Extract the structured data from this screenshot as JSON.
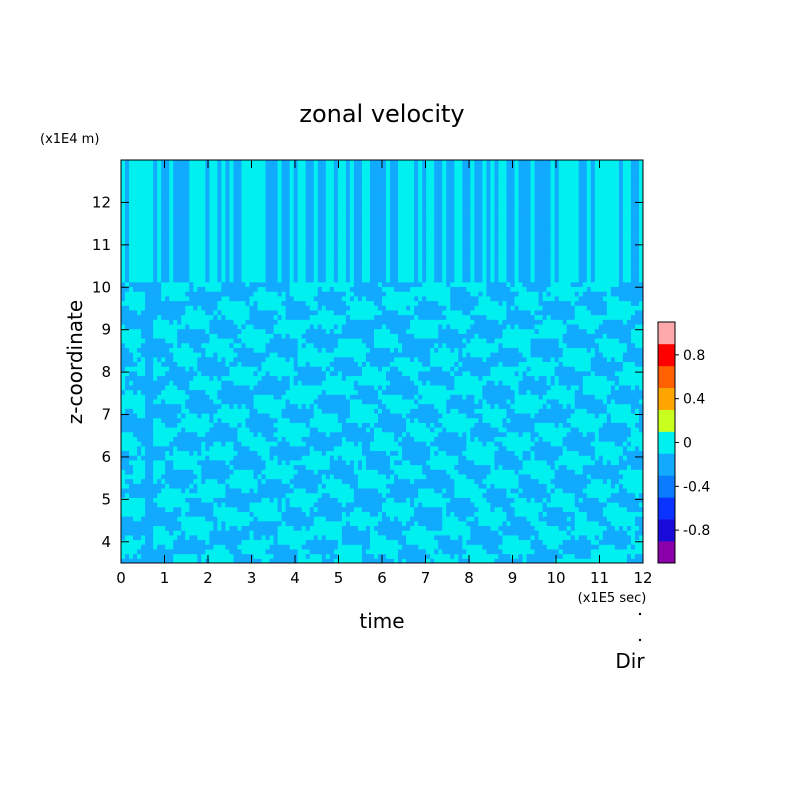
{
  "chart_data": {
    "type": "heatmap",
    "title": "zonal velocity",
    "xlabel": "time",
    "ylabel": "z-coordinate",
    "x_unit": "(x1E5 sec)",
    "y_unit": "(x1E4 m)",
    "xlim": [
      0,
      12
    ],
    "ylim": [
      3.5,
      13
    ],
    "x_ticks": [
      "0",
      "1",
      "2",
      "3",
      "4",
      "5",
      "6",
      "7",
      "8",
      "9",
      "10",
      "11",
      "12"
    ],
    "y_ticks": [
      "4",
      "5",
      "6",
      "7",
      "8",
      "9",
      "10",
      "11",
      "12"
    ],
    "colorbar": {
      "levels": [
        -1.0,
        -0.8,
        -0.6,
        -0.4,
        -0.2,
        0,
        0.2,
        0.4,
        0.6,
        0.8,
        1.0
      ],
      "colors": [
        "#8a00a8",
        "#1a0ad8",
        "#0a33ff",
        "#0a7cff",
        "#11aaff",
        "#00f0f0",
        "#c8ff1e",
        "#ffa500",
        "#ff6000",
        "#ff0000",
        "#ffaaaa"
      ],
      "tick_labels": [
        "0.8",
        "0.4",
        "0",
        "-0.4",
        "-0.8"
      ],
      "tick_values": [
        0.8,
        0.4,
        0,
        -0.4,
        -0.8
      ]
    },
    "field_description_values": {
      "dominant_range": [
        -0.2,
        0.2
      ],
      "upper_layer_z_range": [
        10,
        13
      ],
      "upper_layer_pattern": "vertical streaks alternating 0..0.2 and -0.2..0",
      "lower_layer_pattern": "small alternating patches of -0.2..0 and 0..0.2"
    }
  },
  "footer": {
    "label": "Dir"
  }
}
